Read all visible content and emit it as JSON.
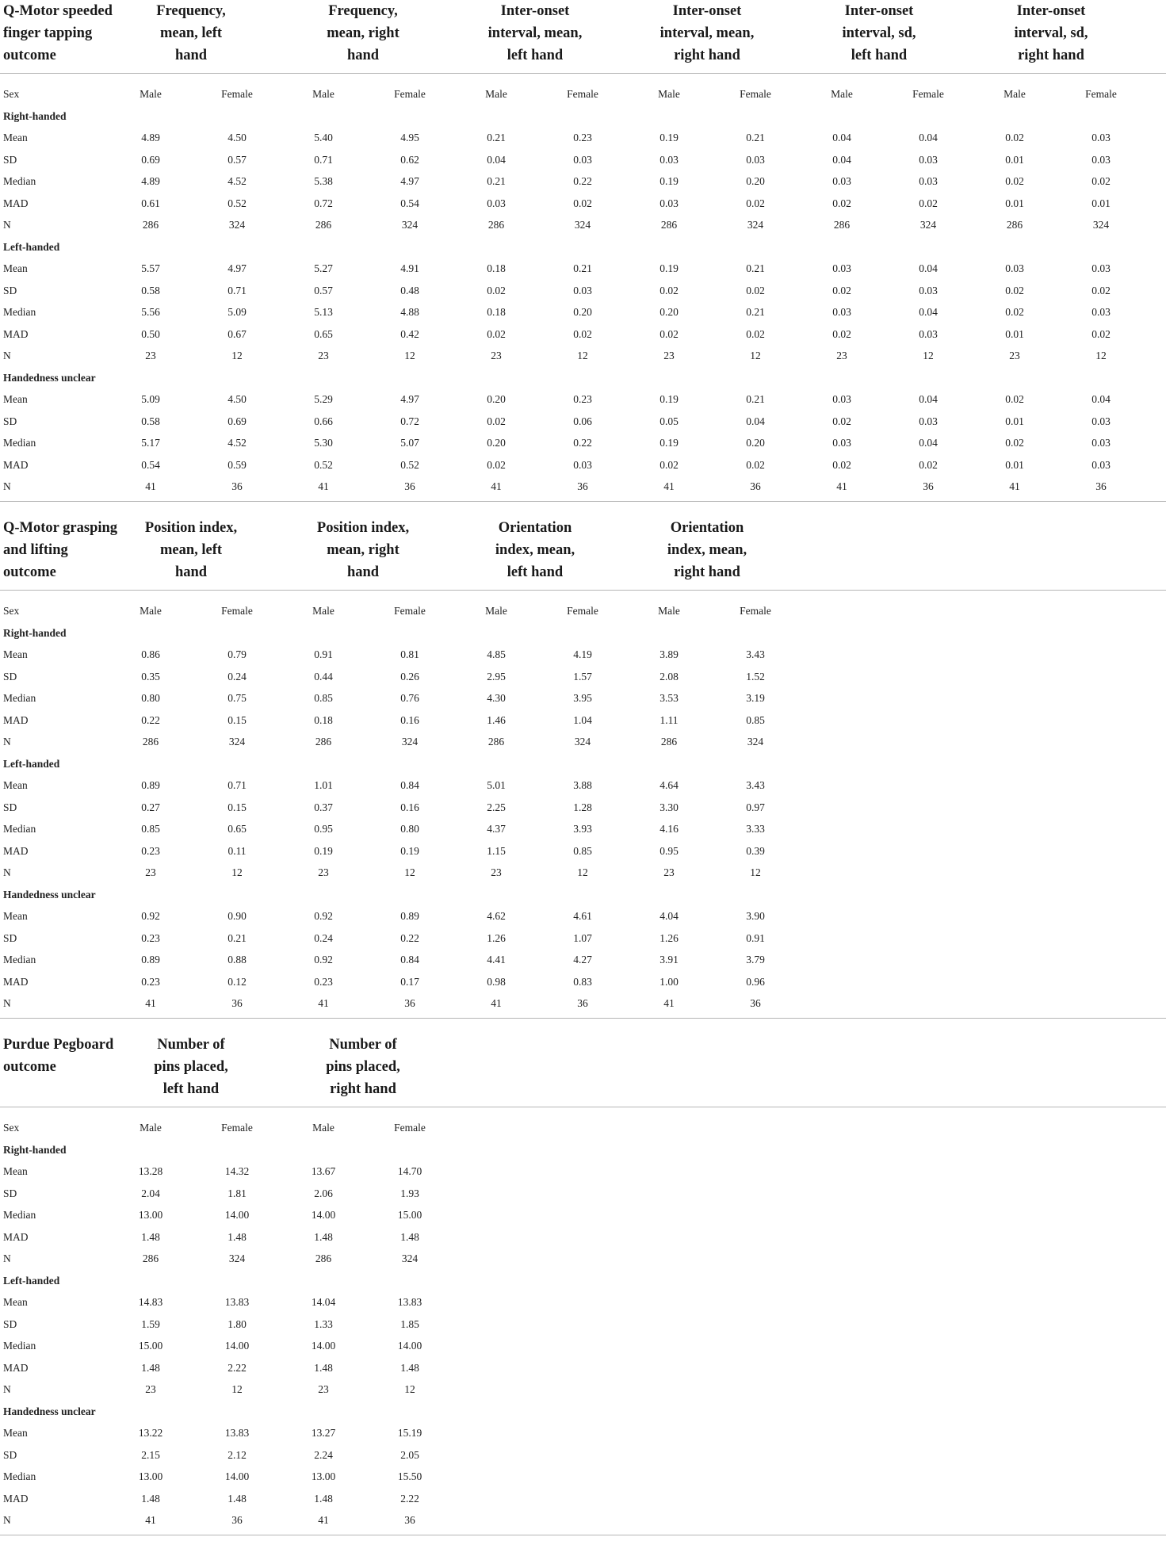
{
  "sections": [
    {
      "title": "Q-Motor speeded finger tapping outcome",
      "title_lines": [
        "Q-Motor speeded",
        "finger tapping",
        "outcome"
      ],
      "columns": [
        {
          "label": "Frequency, mean, left hand",
          "lines": [
            "Frequency,",
            "mean, left",
            "hand"
          ]
        },
        {
          "label": "Frequency, mean, right hand",
          "lines": [
            "Frequency,",
            "mean, right",
            "hand"
          ]
        },
        {
          "label": "Inter-onset interval, mean, left hand",
          "lines": [
            "Inter-onset",
            "interval, mean,",
            "left hand"
          ]
        },
        {
          "label": "Inter-onset interval, mean, right hand",
          "lines": [
            "Inter-onset",
            "interval, mean,",
            "right hand"
          ]
        },
        {
          "label": "Inter-onset interval, sd, left hand",
          "lines": [
            "Inter-onset",
            "interval, sd,",
            "left hand"
          ]
        },
        {
          "label": "Inter-onset interval, sd, right hand",
          "lines": [
            "Inter-onset",
            "interval, sd,",
            "right hand"
          ]
        }
      ],
      "sex_label": "Sex",
      "sex_values": [
        "Male",
        "Female",
        "Male",
        "Female",
        "Male",
        "Female",
        "Male",
        "Female",
        "Male",
        "Female",
        "Male",
        "Female"
      ],
      "groups": [
        {
          "name": "Right-handed",
          "rows": [
            {
              "stat": "Mean",
              "values": [
                "4.89",
                "4.50",
                "5.40",
                "4.95",
                "0.21",
                "0.23",
                "0.19",
                "0.21",
                "0.04",
                "0.04",
                "0.02",
                "0.03"
              ]
            },
            {
              "stat": "SD",
              "values": [
                "0.69",
                "0.57",
                "0.71",
                "0.62",
                "0.04",
                "0.03",
                "0.03",
                "0.03",
                "0.04",
                "0.03",
                "0.01",
                "0.03"
              ]
            },
            {
              "stat": "Median",
              "values": [
                "4.89",
                "4.52",
                "5.38",
                "4.97",
                "0.21",
                "0.22",
                "0.19",
                "0.20",
                "0.03",
                "0.03",
                "0.02",
                "0.02"
              ]
            },
            {
              "stat": "MAD",
              "values": [
                "0.61",
                "0.52",
                "0.72",
                "0.54",
                "0.03",
                "0.02",
                "0.03",
                "0.02",
                "0.02",
                "0.02",
                "0.01",
                "0.01"
              ]
            },
            {
              "stat": "N",
              "values": [
                "286",
                "324",
                "286",
                "324",
                "286",
                "324",
                "286",
                "324",
                "286",
                "324",
                "286",
                "324"
              ]
            }
          ]
        },
        {
          "name": "Left-handed",
          "rows": [
            {
              "stat": "Mean",
              "values": [
                "5.57",
                "4.97",
                "5.27",
                "4.91",
                "0.18",
                "0.21",
                "0.19",
                "0.21",
                "0.03",
                "0.04",
                "0.03",
                "0.03"
              ]
            },
            {
              "stat": "SD",
              "values": [
                "0.58",
                "0.71",
                "0.57",
                "0.48",
                "0.02",
                "0.03",
                "0.02",
                "0.02",
                "0.02",
                "0.03",
                "0.02",
                "0.02"
              ]
            },
            {
              "stat": "Median",
              "values": [
                "5.56",
                "5.09",
                "5.13",
                "4.88",
                "0.18",
                "0.20",
                "0.20",
                "0.21",
                "0.03",
                "0.04",
                "0.02",
                "0.03"
              ]
            },
            {
              "stat": "MAD",
              "values": [
                "0.50",
                "0.67",
                "0.65",
                "0.42",
                "0.02",
                "0.02",
                "0.02",
                "0.02",
                "0.02",
                "0.03",
                "0.01",
                "0.02"
              ]
            },
            {
              "stat": "N",
              "values": [
                "23",
                "12",
                "23",
                "12",
                "23",
                "12",
                "23",
                "12",
                "23",
                "12",
                "23",
                "12"
              ]
            }
          ]
        },
        {
          "name": "Handedness unclear",
          "rows": [
            {
              "stat": "Mean",
              "values": [
                "5.09",
                "4.50",
                "5.29",
                "4.97",
                "0.20",
                "0.23",
                "0.19",
                "0.21",
                "0.03",
                "0.04",
                "0.02",
                "0.04"
              ]
            },
            {
              "stat": "SD",
              "values": [
                "0.58",
                "0.69",
                "0.66",
                "0.72",
                "0.02",
                "0.06",
                "0.05",
                "0.04",
                "0.02",
                "0.03",
                "0.01",
                "0.03"
              ]
            },
            {
              "stat": "Median",
              "values": [
                "5.17",
                "4.52",
                "5.30",
                "5.07",
                "0.20",
                "0.22",
                "0.19",
                "0.20",
                "0.03",
                "0.04",
                "0.02",
                "0.03"
              ]
            },
            {
              "stat": "MAD",
              "values": [
                "0.54",
                "0.59",
                "0.52",
                "0.52",
                "0.02",
                "0.03",
                "0.02",
                "0.02",
                "0.02",
                "0.02",
                "0.01",
                "0.03"
              ]
            },
            {
              "stat": "N",
              "values": [
                "41",
                "36",
                "41",
                "36",
                "41",
                "36",
                "41",
                "36",
                "41",
                "36",
                "41",
                "36"
              ]
            }
          ]
        }
      ]
    },
    {
      "title": "Q-Motor grasping and lifting outcome",
      "title_lines": [
        "Q-Motor grasping",
        "and lifting",
        "outcome"
      ],
      "columns": [
        {
          "label": "Position index, mean, left hand",
          "lines": [
            "Position index,",
            "mean, left",
            "hand"
          ]
        },
        {
          "label": "Position index, mean, right hand",
          "lines": [
            "Position index,",
            "mean, right",
            "hand"
          ]
        },
        {
          "label": "Orientation index, mean, left hand",
          "lines": [
            "Orientation",
            "index, mean,",
            "left hand"
          ]
        },
        {
          "label": "Orientation index, mean, right hand",
          "lines": [
            "Orientation",
            "index, mean,",
            "right hand"
          ]
        }
      ],
      "sex_label": "Sex",
      "sex_values": [
        "Male",
        "Female",
        "Male",
        "Female",
        "Male",
        "Female",
        "Male",
        "Female"
      ],
      "groups": [
        {
          "name": "Right-handed",
          "rows": [
            {
              "stat": "Mean",
              "values": [
                "0.86",
                "0.79",
                "0.91",
                "0.81",
                "4.85",
                "4.19",
                "3.89",
                "3.43"
              ]
            },
            {
              "stat": "SD",
              "values": [
                "0.35",
                "0.24",
                "0.44",
                "0.26",
                "2.95",
                "1.57",
                "2.08",
                "1.52"
              ]
            },
            {
              "stat": "Median",
              "values": [
                "0.80",
                "0.75",
                "0.85",
                "0.76",
                "4.30",
                "3.95",
                "3.53",
                "3.19"
              ]
            },
            {
              "stat": "MAD",
              "values": [
                "0.22",
                "0.15",
                "0.18",
                "0.16",
                "1.46",
                "1.04",
                "1.11",
                "0.85"
              ]
            },
            {
              "stat": "N",
              "values": [
                "286",
                "324",
                "286",
                "324",
                "286",
                "324",
                "286",
                "324"
              ]
            }
          ]
        },
        {
          "name": "Left-handed",
          "rows": [
            {
              "stat": "Mean",
              "values": [
                "0.89",
                "0.71",
                "1.01",
                "0.84",
                "5.01",
                "3.88",
                "4.64",
                "3.43"
              ]
            },
            {
              "stat": "SD",
              "values": [
                "0.27",
                "0.15",
                "0.37",
                "0.16",
                "2.25",
                "1.28",
                "3.30",
                "0.97"
              ]
            },
            {
              "stat": "Median",
              "values": [
                "0.85",
                "0.65",
                "0.95",
                "0.80",
                "4.37",
                "3.93",
                "4.16",
                "3.33"
              ]
            },
            {
              "stat": "MAD",
              "values": [
                "0.23",
                "0.11",
                "0.19",
                "0.19",
                "1.15",
                "0.85",
                "0.95",
                "0.39"
              ]
            },
            {
              "stat": "N",
              "values": [
                "23",
                "12",
                "23",
                "12",
                "23",
                "12",
                "23",
                "12"
              ]
            }
          ]
        },
        {
          "name": "Handedness unclear",
          "rows": [
            {
              "stat": "Mean",
              "values": [
                "0.92",
                "0.90",
                "0.92",
                "0.89",
                "4.62",
                "4.61",
                "4.04",
                "3.90"
              ]
            },
            {
              "stat": "SD",
              "values": [
                "0.23",
                "0.21",
                "0.24",
                "0.22",
                "1.26",
                "1.07",
                "1.26",
                "0.91"
              ]
            },
            {
              "stat": "Median",
              "values": [
                "0.89",
                "0.88",
                "0.92",
                "0.84",
                "4.41",
                "4.27",
                "3.91",
                "3.79"
              ]
            },
            {
              "stat": "MAD",
              "values": [
                "0.23",
                "0.12",
                "0.23",
                "0.17",
                "0.98",
                "0.83",
                "1.00",
                "0.96"
              ]
            },
            {
              "stat": "N",
              "values": [
                "41",
                "36",
                "41",
                "36",
                "41",
                "36",
                "41",
                "36"
              ]
            }
          ]
        }
      ]
    },
    {
      "title": "Purdue Pegboard outcome",
      "title_lines": [
        "Purdue Pegboard",
        "outcome"
      ],
      "columns": [
        {
          "label": "Number of pins placed, left hand",
          "lines": [
            "Number of",
            "pins placed,",
            "left hand"
          ]
        },
        {
          "label": "Number of pins placed, right hand",
          "lines": [
            "Number of",
            "pins placed,",
            "right hand"
          ]
        }
      ],
      "sex_label": "Sex",
      "sex_values": [
        "Male",
        "Female",
        "Male",
        "Female"
      ],
      "groups": [
        {
          "name": "Right-handed",
          "rows": [
            {
              "stat": "Mean",
              "values": [
                "13.28",
                "14.32",
                "13.67",
                "14.70"
              ]
            },
            {
              "stat": "SD",
              "values": [
                "2.04",
                "1.81",
                "2.06",
                "1.93"
              ]
            },
            {
              "stat": "Median",
              "values": [
                "13.00",
                "14.00",
                "14.00",
                "15.00"
              ]
            },
            {
              "stat": "MAD",
              "values": [
                "1.48",
                "1.48",
                "1.48",
                "1.48"
              ]
            },
            {
              "stat": "N",
              "values": [
                "286",
                "324",
                "286",
                "324"
              ]
            }
          ]
        },
        {
          "name": "Left-handed",
          "rows": [
            {
              "stat": "Mean",
              "values": [
                "14.83",
                "13.83",
                "14.04",
                "13.83"
              ]
            },
            {
              "stat": "SD",
              "values": [
                "1.59",
                "1.80",
                "1.33",
                "1.85"
              ]
            },
            {
              "stat": "Median",
              "values": [
                "15.00",
                "14.00",
                "14.00",
                "14.00"
              ]
            },
            {
              "stat": "MAD",
              "values": [
                "1.48",
                "2.22",
                "1.48",
                "1.48"
              ]
            },
            {
              "stat": "N",
              "values": [
                "23",
                "12",
                "23",
                "12"
              ]
            }
          ]
        },
        {
          "name": "Handedness unclear",
          "rows": [
            {
              "stat": "Mean",
              "values": [
                "13.22",
                "13.83",
                "13.27",
                "15.19"
              ]
            },
            {
              "stat": "SD",
              "values": [
                "2.15",
                "2.12",
                "2.24",
                "2.05"
              ]
            },
            {
              "stat": "Median",
              "values": [
                "13.00",
                "14.00",
                "13.00",
                "15.50"
              ]
            },
            {
              "stat": "MAD",
              "values": [
                "1.48",
                "1.48",
                "1.48",
                "2.22"
              ]
            },
            {
              "stat": "N",
              "values": [
                "41",
                "36",
                "41",
                "36"
              ]
            }
          ]
        }
      ]
    }
  ]
}
